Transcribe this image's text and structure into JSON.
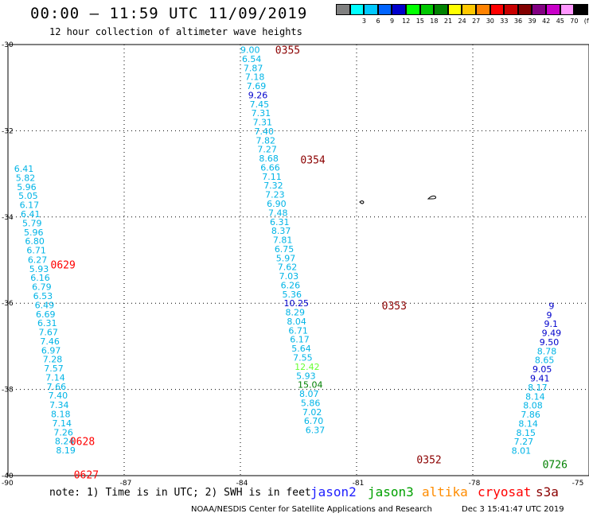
{
  "header": {
    "title": "00:00 — 11:59 UTC 11/09/2019",
    "subtitle": "12 hour collection of altimeter wave heights"
  },
  "colorbar": {
    "unit": "(ft)",
    "swatches": [
      {
        "color": "#808080",
        "label": ""
      },
      {
        "color": "#00ffff",
        "label": "3"
      },
      {
        "color": "#00c8ff",
        "label": "6"
      },
      {
        "color": "#0064ff",
        "label": "9"
      },
      {
        "color": "#0000cc",
        "label": "12"
      },
      {
        "color": "#00ff00",
        "label": "15"
      },
      {
        "color": "#00c800",
        "label": "18"
      },
      {
        "color": "#008200",
        "label": "21"
      },
      {
        "color": "#ffff00",
        "label": "24"
      },
      {
        "color": "#ffc800",
        "label": "27"
      },
      {
        "color": "#ff8200",
        "label": "30"
      },
      {
        "color": "#ff0000",
        "label": "33"
      },
      {
        "color": "#c80000",
        "label": "36"
      },
      {
        "color": "#820000",
        "label": "39"
      },
      {
        "color": "#820082",
        "label": "42"
      },
      {
        "color": "#c800c8",
        "label": "45"
      },
      {
        "color": "#ff96ff",
        "label": "70"
      },
      {
        "color": "#000000",
        "label": ""
      }
    ]
  },
  "footer": {
    "note": "note: 1) Time is in UTC; 2) SWH is in feet",
    "missions": [
      {
        "name": "jason2",
        "color": "#1e1eff"
      },
      {
        "name": "jason3",
        "color": "#00a000"
      },
      {
        "name": "altika",
        "color": "#ff8c00"
      },
      {
        "name": "cryosat",
        "color": "#ff0000"
      },
      {
        "name": "s3a",
        "color": "#8b0000"
      }
    ],
    "credit": "NOAA/NESDIS Center for Satellite Applications and Research",
    "generated": "Dec  3 15:41:47 UTC 2019"
  },
  "chart_data": {
    "type": "scatter",
    "title": "00:00 — 11:59 UTC 11/09/2019",
    "subtitle": "12 hour collection of altimeter wave heights",
    "xlim": [
      -90,
      -75
    ],
    "ylim": [
      -40,
      -30
    ],
    "grid": true,
    "x_ticks": [
      -90,
      -87,
      -84,
      -81,
      -78,
      -75
    ],
    "y_ticks": [
      -30,
      -32,
      -34,
      -36,
      -38,
      -40
    ],
    "colors": {
      "c6": "#00b4e6",
      "c9": "#0064ff",
      "c12": "#0000cc",
      "c15": "#66ff33",
      "c18": "#00c000",
      "c21": "#008000"
    },
    "passes": [
      {
        "time_label": "0629/0628/0627",
        "time_color": "#ff0000",
        "time_marks": [
          {
            "label": "0629",
            "lon": -88.9,
            "lat": -35.1
          },
          {
            "label": "0628",
            "lon": -88.4,
            "lat": -39.2
          },
          {
            "label": "0627",
            "lon": -88.3,
            "lat": -39.97
          }
        ],
        "points": [
          {
            "lon": -89.84,
            "lat": -32.88,
            "swh": "6.41",
            "c": "c6"
          },
          {
            "lon": -89.8,
            "lat": -33.09,
            "swh": "5.82",
            "c": "c6"
          },
          {
            "lon": -89.77,
            "lat": -33.3,
            "swh": "5.96",
            "c": "c6"
          },
          {
            "lon": -89.73,
            "lat": -33.51,
            "swh": "5.05",
            "c": "c6"
          },
          {
            "lon": -89.7,
            "lat": -33.72,
            "swh": "6.17",
            "c": "c6"
          },
          {
            "lon": -89.67,
            "lat": -33.93,
            "swh": "6.41",
            "c": "c6"
          },
          {
            "lon": -89.63,
            "lat": -34.14,
            "swh": "5.79",
            "c": "c6"
          },
          {
            "lon": -89.59,
            "lat": -34.35,
            "swh": "5.96",
            "c": "c6"
          },
          {
            "lon": -89.56,
            "lat": -34.56,
            "swh": "6.80",
            "c": "c6"
          },
          {
            "lon": -89.52,
            "lat": -34.77,
            "swh": "6.71",
            "c": "c6"
          },
          {
            "lon": -89.49,
            "lat": -34.99,
            "swh": "6.27",
            "c": "c6"
          },
          {
            "lon": -89.45,
            "lat": -35.2,
            "swh": "5.93",
            "c": "c6"
          },
          {
            "lon": -89.42,
            "lat": -35.41,
            "swh": "6.16",
            "c": "c6"
          },
          {
            "lon": -89.38,
            "lat": -35.62,
            "swh": "6.79",
            "c": "c6"
          },
          {
            "lon": -89.35,
            "lat": -35.83,
            "swh": "6.53",
            "c": "c6"
          },
          {
            "lon": -89.31,
            "lat": -36.04,
            "swh": "6.49",
            "c": "c6"
          },
          {
            "lon": -89.28,
            "lat": -36.25,
            "swh": "6.69",
            "c": "c6"
          },
          {
            "lon": -89.24,
            "lat": -36.46,
            "swh": "6.31",
            "c": "c6"
          },
          {
            "lon": -89.21,
            "lat": -36.67,
            "swh": "7.67",
            "c": "c6"
          },
          {
            "lon": -89.17,
            "lat": -36.88,
            "swh": "7.46",
            "c": "c6"
          },
          {
            "lon": -89.14,
            "lat": -37.09,
            "swh": "6.97",
            "c": "c6"
          },
          {
            "lon": -89.1,
            "lat": -37.3,
            "swh": "7.28",
            "c": "c6"
          },
          {
            "lon": -89.07,
            "lat": -37.51,
            "swh": "7.57",
            "c": "c6"
          },
          {
            "lon": -89.03,
            "lat": -37.72,
            "swh": "7.14",
            "c": "c6"
          },
          {
            "lon": -89.0,
            "lat": -37.93,
            "swh": "7.66",
            "c": "c6"
          },
          {
            "lon": -88.96,
            "lat": -38.14,
            "swh": "7.40",
            "c": "c6"
          },
          {
            "lon": -88.93,
            "lat": -38.36,
            "swh": "7.34",
            "c": "c6"
          },
          {
            "lon": -88.89,
            "lat": -38.57,
            "swh": "8.18",
            "c": "c6"
          },
          {
            "lon": -88.86,
            "lat": -38.78,
            "swh": "7.14",
            "c": "c6"
          },
          {
            "lon": -88.82,
            "lat": -38.99,
            "swh": "7.26",
            "c": "c6"
          },
          {
            "lon": -88.79,
            "lat": -39.2,
            "swh": "8.24",
            "c": "c6"
          },
          {
            "lon": -88.76,
            "lat": -39.41,
            "swh": "8.19",
            "c": "c6"
          }
        ]
      },
      {
        "time_label": "0355/0354/0353/0352",
        "time_color": "#8b0000",
        "time_marks": [
          {
            "label": "0355",
            "lon": -83.1,
            "lat": -30.12
          },
          {
            "label": "0354",
            "lon": -82.45,
            "lat": -32.67
          },
          {
            "label": "0353",
            "lon": -80.35,
            "lat": -36.05
          },
          {
            "label": "0352",
            "lon": -79.45,
            "lat": -39.62
          }
        ],
        "points": [
          {
            "lon": -84.0,
            "lat": -30.12,
            "swh": "9.00",
            "c": "c6"
          },
          {
            "lon": -83.96,
            "lat": -30.33,
            "swh": "6.54",
            "c": "c6"
          },
          {
            "lon": -83.92,
            "lat": -30.54,
            "swh": "7.87",
            "c": "c6"
          },
          {
            "lon": -83.88,
            "lat": -30.75,
            "swh": "7.18",
            "c": "c6"
          },
          {
            "lon": -83.84,
            "lat": -30.96,
            "swh": "7.69",
            "c": "c6"
          },
          {
            "lon": -83.8,
            "lat": -31.17,
            "swh": "9.26",
            "c": "c12"
          },
          {
            "lon": -83.76,
            "lat": -31.38,
            "swh": "7.45",
            "c": "c6"
          },
          {
            "lon": -83.72,
            "lat": -31.59,
            "swh": "7.31",
            "c": "c6"
          },
          {
            "lon": -83.68,
            "lat": -31.8,
            "swh": "7.31",
            "c": "c6"
          },
          {
            "lon": -83.64,
            "lat": -32.01,
            "swh": "7.40",
            "c": "c6"
          },
          {
            "lon": -83.6,
            "lat": -32.22,
            "swh": "7.82",
            "c": "c6"
          },
          {
            "lon": -83.56,
            "lat": -32.43,
            "swh": "7.27",
            "c": "c6"
          },
          {
            "lon": -83.52,
            "lat": -32.64,
            "swh": "8.68",
            "c": "c6"
          },
          {
            "lon": -83.48,
            "lat": -32.85,
            "swh": "6.66",
            "c": "c6"
          },
          {
            "lon": -83.44,
            "lat": -33.06,
            "swh": "7.11",
            "c": "c6"
          },
          {
            "lon": -83.4,
            "lat": -33.27,
            "swh": "7.32",
            "c": "c6"
          },
          {
            "lon": -83.36,
            "lat": -33.48,
            "swh": "7.23",
            "c": "c6"
          },
          {
            "lon": -83.32,
            "lat": -33.69,
            "swh": "6.90",
            "c": "c6"
          },
          {
            "lon": -83.28,
            "lat": -33.9,
            "swh": "7.48",
            "c": "c6"
          },
          {
            "lon": -83.24,
            "lat": -34.11,
            "swh": "6.31",
            "c": "c6"
          },
          {
            "lon": -83.2,
            "lat": -34.32,
            "swh": "8.37",
            "c": "c6"
          },
          {
            "lon": -83.16,
            "lat": -34.53,
            "swh": "7.81",
            "c": "c6"
          },
          {
            "lon": -83.12,
            "lat": -34.74,
            "swh": "6.75",
            "c": "c6"
          },
          {
            "lon": -83.08,
            "lat": -34.95,
            "swh": "5.97",
            "c": "c6"
          },
          {
            "lon": -83.04,
            "lat": -35.16,
            "swh": "7.62",
            "c": "c6"
          },
          {
            "lon": -83.0,
            "lat": -35.37,
            "swh": "7.03",
            "c": "c6"
          },
          {
            "lon": -82.96,
            "lat": -35.58,
            "swh": "6.26",
            "c": "c6"
          },
          {
            "lon": -82.92,
            "lat": -35.79,
            "swh": "5.36",
            "c": "c6"
          },
          {
            "lon": -82.88,
            "lat": -36.0,
            "swh": "10.25",
            "c": "c12"
          },
          {
            "lon": -82.84,
            "lat": -36.21,
            "swh": "8.29",
            "c": "c6"
          },
          {
            "lon": -82.8,
            "lat": -36.42,
            "swh": "8.04",
            "c": "c6"
          },
          {
            "lon": -82.76,
            "lat": -36.63,
            "swh": "6.71",
            "c": "c6"
          },
          {
            "lon": -82.72,
            "lat": -36.84,
            "swh": "6.17",
            "c": "c6"
          },
          {
            "lon": -82.68,
            "lat": -37.05,
            "swh": "5.64",
            "c": "c6"
          },
          {
            "lon": -82.64,
            "lat": -37.26,
            "swh": "7.55",
            "c": "c6"
          },
          {
            "lon": -82.6,
            "lat": -37.47,
            "swh": "12.42",
            "c": "c15"
          },
          {
            "lon": -82.56,
            "lat": -37.68,
            "swh": "5.93",
            "c": "c6"
          },
          {
            "lon": -82.52,
            "lat": -37.89,
            "swh": "15.04",
            "c": "c21"
          },
          {
            "lon": -82.48,
            "lat": -38.1,
            "swh": "8.07",
            "c": "c6"
          },
          {
            "lon": -82.44,
            "lat": -38.31,
            "swh": "5.86",
            "c": "c6"
          },
          {
            "lon": -82.4,
            "lat": -38.52,
            "swh": "7.02",
            "c": "c6"
          },
          {
            "lon": -82.36,
            "lat": -38.73,
            "swh": "6.70",
            "c": "c6"
          },
          {
            "lon": -82.32,
            "lat": -38.94,
            "swh": "6.37",
            "c": "c6"
          }
        ]
      },
      {
        "time_label": "0726",
        "time_color": "#008000",
        "time_marks": [
          {
            "label": "0726",
            "lon": -76.2,
            "lat": -39.73
          }
        ],
        "points": [
          {
            "lon": -77.0,
            "lat": -39.42,
            "swh": "8.01",
            "c": "c6"
          },
          {
            "lon": -76.94,
            "lat": -39.21,
            "swh": "7.27",
            "c": "c6"
          },
          {
            "lon": -76.88,
            "lat": -39.0,
            "swh": "8.15",
            "c": "c6"
          },
          {
            "lon": -76.82,
            "lat": -38.79,
            "swh": "8.14",
            "c": "c6"
          },
          {
            "lon": -76.76,
            "lat": -38.58,
            "swh": "7.86",
            "c": "c6"
          },
          {
            "lon": -76.7,
            "lat": -38.37,
            "swh": "8.08",
            "c": "c6"
          },
          {
            "lon": -76.64,
            "lat": -38.16,
            "swh": "8.14",
            "c": "c6"
          },
          {
            "lon": -76.58,
            "lat": -37.95,
            "swh": "8.17",
            "c": "c6"
          },
          {
            "lon": -76.52,
            "lat": -37.74,
            "swh": "9.41",
            "c": "c12"
          },
          {
            "lon": -76.46,
            "lat": -37.53,
            "swh": "9.05",
            "c": "c12"
          },
          {
            "lon": -76.4,
            "lat": -37.32,
            "swh": "8.65",
            "c": "c6"
          },
          {
            "lon": -76.34,
            "lat": -37.11,
            "swh": "8.78",
            "c": "c6"
          },
          {
            "lon": -76.28,
            "lat": -36.9,
            "swh": "9.50",
            "c": "c12"
          },
          {
            "lon": -76.22,
            "lat": -36.69,
            "swh": "9.49",
            "c": "c12"
          },
          {
            "lon": -76.16,
            "lat": -36.48,
            "swh": "9.1",
            "c": "c12"
          },
          {
            "lon": -76.1,
            "lat": -36.27,
            "swh": "9",
            "c": "c12"
          },
          {
            "lon": -76.04,
            "lat": -36.06,
            "swh": "9",
            "c": "c12"
          }
        ]
      }
    ]
  }
}
